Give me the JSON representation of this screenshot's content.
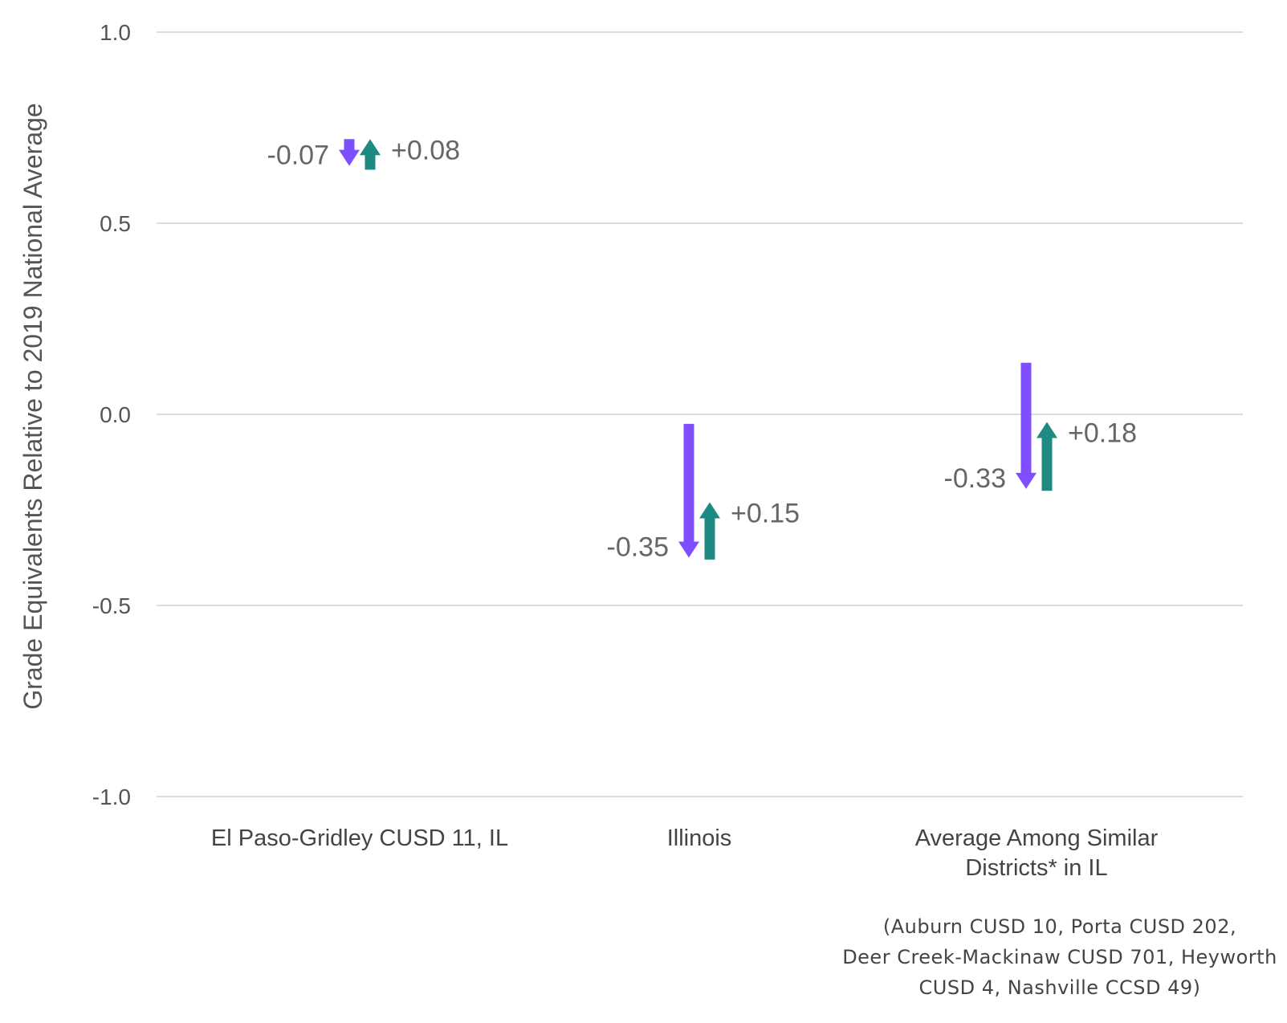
{
  "chart_data": {
    "type": "arrow",
    "ylabel": "Grade Equivalents Relative to 2019 National Average",
    "xlabel": "",
    "ylim": [
      -1.0,
      1.0
    ],
    "yticks": [
      1.0,
      0.5,
      0.0,
      -0.5,
      -1.0
    ],
    "ytick_labels": [
      "1.0",
      "0.5",
      "0.0",
      "-0.5",
      "-1.0"
    ],
    "grid": true,
    "colors": {
      "decline": "#7F4FFF",
      "recovery": "#1E8A82"
    },
    "groups": [
      {
        "category": [
          "El Paso-Gridley CUSD 11, IL"
        ],
        "decline": {
          "start": 0.72,
          "end": 0.65,
          "label": "-0.07"
        },
        "recovery": {
          "start": 0.64,
          "end": 0.72,
          "label": "+0.08"
        }
      },
      {
        "category": [
          "Illinois"
        ],
        "decline": {
          "start": -0.025,
          "end": -0.375,
          "label": "-0.35"
        },
        "recovery": {
          "start": -0.38,
          "end": -0.23,
          "label": "+0.15"
        }
      },
      {
        "category": [
          "Average Among Similar",
          "Districts* in IL"
        ],
        "decline": {
          "start": 0.135,
          "end": -0.195,
          "label": "-0.33"
        },
        "recovery": {
          "start": -0.2,
          "end": -0.02,
          "label": "+0.18"
        }
      }
    ],
    "footnote": [
      "(Auburn CUSD 10, Porta CUSD 202,",
      "Deer Creek-Mackinaw CUSD 701, Heyworth",
      "CUSD 4, Nashville CCSD 49)"
    ]
  }
}
